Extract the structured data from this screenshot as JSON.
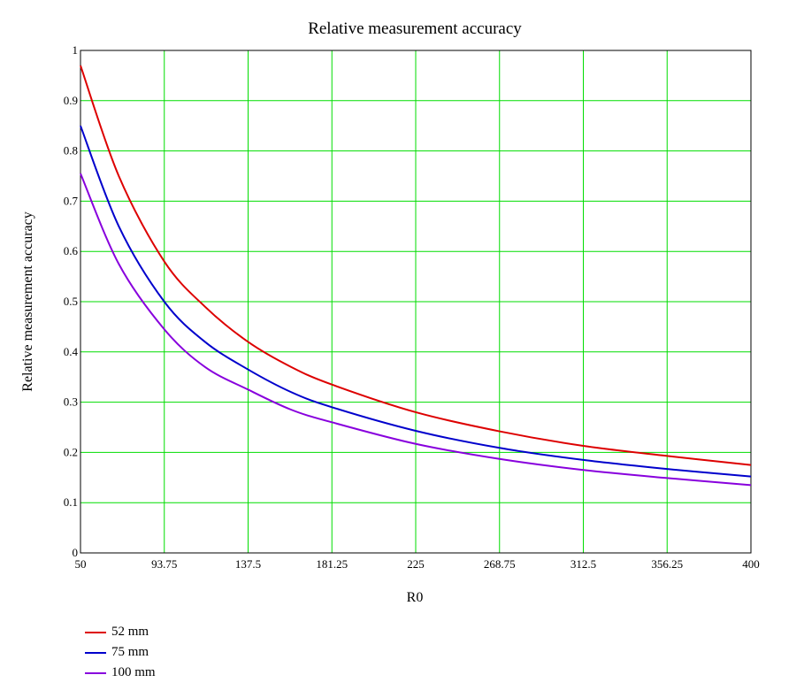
{
  "chart_data": {
    "type": "line",
    "title": "Relative measurement accuracy",
    "xlabel": "R0",
    "ylabel": "Relative measurement accuracy",
    "xlim": [
      50,
      400
    ],
    "ylim": [
      0,
      1
    ],
    "x_ticks": [
      "50",
      "93.75",
      "137.5",
      "181.25",
      "225",
      "268.75",
      "312.5",
      "356.25",
      "400"
    ],
    "y_ticks": [
      "0",
      "0.1",
      "0.2",
      "0.3",
      "0.4",
      "0.5",
      "0.6",
      "0.7",
      "0.8",
      "0.9",
      "1"
    ],
    "grid": true,
    "grid_color": "#00dd00",
    "legend_position": "bottom-left",
    "x": [
      50,
      70,
      93.75,
      115,
      137.5,
      160,
      181.25,
      225,
      268.75,
      312.5,
      356.25,
      400
    ],
    "series": [
      {
        "name": "52 mm",
        "color": "#dd0000",
        "values": [
          0.97,
          0.75,
          0.58,
          0.49,
          0.42,
          0.37,
          0.335,
          0.28,
          0.242,
          0.213,
          0.193,
          0.175
        ]
      },
      {
        "name": "75 mm",
        "color": "#0000cc",
        "values": [
          0.85,
          0.65,
          0.5,
          0.42,
          0.365,
          0.32,
          0.29,
          0.243,
          0.209,
          0.185,
          0.167,
          0.152
        ]
      },
      {
        "name": "100 mm",
        "color": "#8800dd",
        "values": [
          0.755,
          0.575,
          0.445,
          0.37,
          0.325,
          0.285,
          0.26,
          0.217,
          0.187,
          0.165,
          0.149,
          0.135
        ]
      }
    ]
  }
}
